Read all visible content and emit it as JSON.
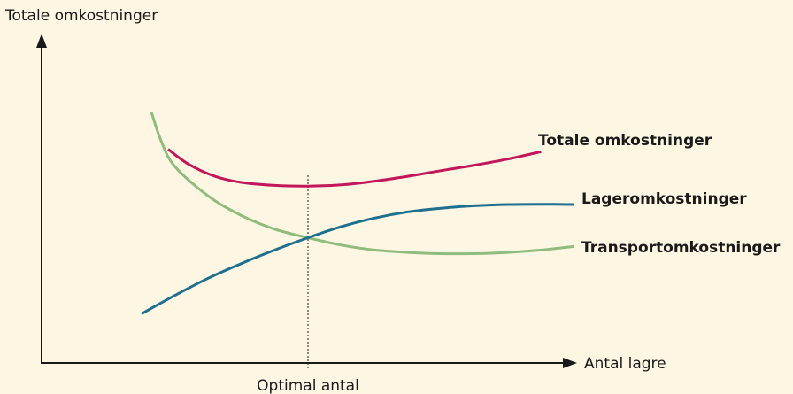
{
  "chart_data": {
    "type": "line",
    "title": "",
    "ylabel": "Totale omkostninger",
    "xlabel": "Antal lagre",
    "x_marker_label": "Optimal antal",
    "x_marker": 4,
    "xlim": [
      0,
      10
    ],
    "ylim": [
      0,
      10
    ],
    "grid": false,
    "colors": {
      "background": "#fdf6e3",
      "axis": "#1a1a1a",
      "total": "#c2185b",
      "lager": "#1f6f8f",
      "transport": "#8fbc7c"
    },
    "series": [
      {
        "name": "Totale omkostninger",
        "color": "#c2185b",
        "x": [
          1.9,
          2.2,
          2.6,
          3.0,
          3.5,
          4.0,
          4.5,
          5.0,
          5.5,
          6.0,
          6.5,
          7.0,
          7.5
        ],
        "y": [
          8.7,
          8.1,
          7.6,
          7.35,
          7.23,
          7.2,
          7.25,
          7.4,
          7.6,
          7.83,
          8.05,
          8.3,
          8.6
        ]
      },
      {
        "name": "Lageromkostninger",
        "color": "#1f6f8f",
        "x": [
          1.5,
          2.0,
          2.5,
          3.0,
          3.5,
          4.0,
          4.5,
          5.0,
          5.5,
          6.0,
          6.5,
          7.0,
          7.5,
          8.0
        ],
        "y": [
          2.0,
          2.75,
          3.45,
          4.05,
          4.6,
          5.1,
          5.55,
          5.9,
          6.15,
          6.3,
          6.4,
          6.45,
          6.46,
          6.45
        ]
      },
      {
        "name": "Transportomkostninger",
        "color": "#8fbc7c",
        "x": [
          1.65,
          1.8,
          2.0,
          2.5,
          3.0,
          3.5,
          4.0,
          4.5,
          5.0,
          5.5,
          6.0,
          6.5,
          7.0,
          7.5,
          8.0
        ],
        "y": [
          10.2,
          9.0,
          8.0,
          6.8,
          6.0,
          5.45,
          5.1,
          4.8,
          4.6,
          4.5,
          4.45,
          4.45,
          4.5,
          4.6,
          4.75
        ]
      }
    ]
  }
}
